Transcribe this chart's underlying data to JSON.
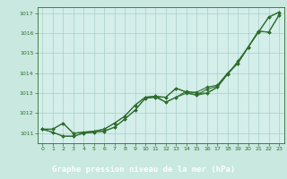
{
  "title": "Graphe pression niveau de la mer (hPa)",
  "background_color": "#c8e8e0",
  "plot_bg_color": "#d4eeea",
  "grid_color": "#aacfc8",
  "line_color": "#2d6e2d",
  "title_bg_color": "#2d6e2d",
  "title_text_color": "#ffffff",
  "x_ticks": [
    0,
    1,
    2,
    3,
    4,
    5,
    6,
    7,
    8,
    9,
    10,
    11,
    12,
    13,
    14,
    15,
    16,
    17,
    18,
    19,
    20,
    21,
    22,
    23
  ],
  "ylim": [
    1010.5,
    1017.3
  ],
  "xlim": [
    -0.5,
    23.5
  ],
  "yticks": [
    1011,
    1012,
    1013,
    1014,
    1015,
    1016,
    1017
  ],
  "series": [
    [
      1011.2,
      1011.2,
      1011.5,
      1011.0,
      1011.05,
      1011.1,
      1011.2,
      1011.5,
      1011.85,
      1012.4,
      1012.8,
      1012.85,
      1012.8,
      1013.25,
      1013.05,
      1013.05,
      1013.3,
      1013.4,
      1014.0,
      1014.5,
      1015.3,
      1016.05,
      1016.8,
      1017.05
    ],
    [
      1011.2,
      1011.2,
      1011.5,
      1011.0,
      1011.05,
      1011.1,
      1011.2,
      1011.5,
      1011.85,
      1012.4,
      1012.8,
      1012.85,
      1012.55,
      1012.8,
      1013.1,
      1013.0,
      1013.0,
      1013.3,
      1013.95,
      1014.6,
      1015.3,
      1016.1,
      1016.05,
      1016.9
    ],
    [
      1011.2,
      1011.05,
      1010.85,
      1010.85,
      1011.0,
      1011.05,
      1011.1,
      1011.3,
      1011.7,
      1012.15,
      1012.75,
      1012.8,
      1012.8,
      1013.25,
      1013.05,
      1012.9,
      1013.2,
      1013.35,
      1014.0,
      1014.5,
      1015.3,
      1016.05,
      1016.8,
      1017.05
    ],
    [
      1011.2,
      1011.05,
      1010.85,
      1010.85,
      1011.0,
      1011.05,
      1011.1,
      1011.3,
      1011.7,
      1012.15,
      1012.75,
      1012.8,
      1012.55,
      1012.8,
      1013.0,
      1012.9,
      1013.0,
      1013.3,
      1013.95,
      1014.5,
      1015.3,
      1016.1,
      1016.05,
      1016.9
    ]
  ]
}
